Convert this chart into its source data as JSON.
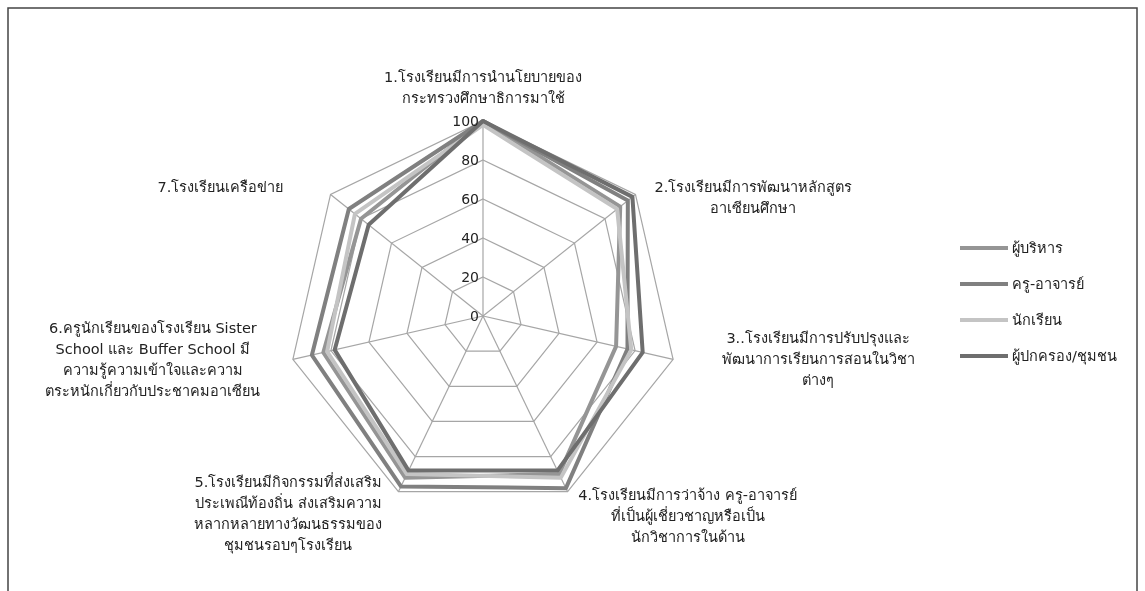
{
  "chart_data": {
    "type": "radar",
    "categories": [
      "1.โรงเรียนมีการนำนโยบายของ\nกระทรวงศึกษาธิการมาใช้",
      "2.โรงเรียนมีการพัฒนาหลักสูตร\nอาเซียนศึกษา",
      "3..โรงเรียนมีการปรับปรุงและ\nพัฒนาการเรียนการสอนในวิชา\nต่างๆ",
      "4.โรงเรียนมีการว่าจ้าง ครู-อาจารย์\nที่เป็นผู้เชี่ยวชาญหรือเป็น\nนักวิชาการในด้าน",
      "5.โรงเรียนมีกิจกรรมที่ส่งเสริม\nประเพณีท้องถิ่น ส่งเสริมความ\nหลากหลายทางวัฒนธรรมของ\nชุมชนรอบๆโรงเรียน",
      "6.ครูนักเรียนของโรงเรียน Sister\nSchool และ Buffer School มี\nความรู้ความเข้าใจและความ\nตระหนักเกี่ยวกับประชาคมอาเซียน",
      "7.โรงเรียนเครือข่าย"
    ],
    "series": [
      {
        "name": "ผู้บริหาร",
        "color": "#959595",
        "values": [
          100,
          90,
          70,
          90,
          92,
          84,
          80
        ]
      },
      {
        "name": "ครู-อาจารย์",
        "color": "#808080",
        "values": [
          100,
          95,
          76,
          98,
          97,
          90,
          88
        ]
      },
      {
        "name": "นักเรียน",
        "color": "#c4c4c4",
        "values": [
          98,
          88,
          78,
          92,
          90,
          82,
          84
        ]
      },
      {
        "name": "ผู้ปกครอง/ชุมชน",
        "color": "#6e6e6e",
        "values": [
          100,
          98,
          84,
          88,
          88,
          78,
          75
        ]
      }
    ],
    "ylim": [
      0,
      100
    ],
    "yticks": [
      0,
      20,
      40,
      60,
      80,
      100
    ],
    "legend": "right"
  }
}
